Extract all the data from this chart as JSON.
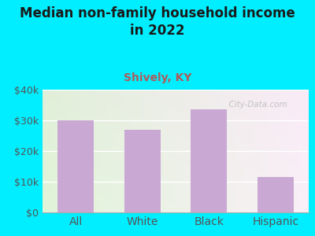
{
  "title": "Median non-family household income\nin 2022",
  "subtitle": "Shively, KY",
  "categories": [
    "All",
    "White",
    "Black",
    "Hispanic"
  ],
  "values": [
    30000,
    27000,
    33500,
    11500
  ],
  "bar_color": "#c9a8d4",
  "title_fontsize": 12,
  "subtitle_fontsize": 10,
  "subtitle_color": "#b05a5a",
  "title_color": "#1a1a1a",
  "background_outer": "#00eeff",
  "ylim": [
    0,
    40000
  ],
  "yticks": [
    0,
    10000,
    20000,
    30000,
    40000
  ],
  "ytick_labels": [
    "$0",
    "$10k",
    "$20k",
    "$30k",
    "$40k"
  ],
  "watermark": "  City-Data.com",
  "tick_color": "#555555",
  "tick_fontsize": 9,
  "xtick_fontsize": 10
}
